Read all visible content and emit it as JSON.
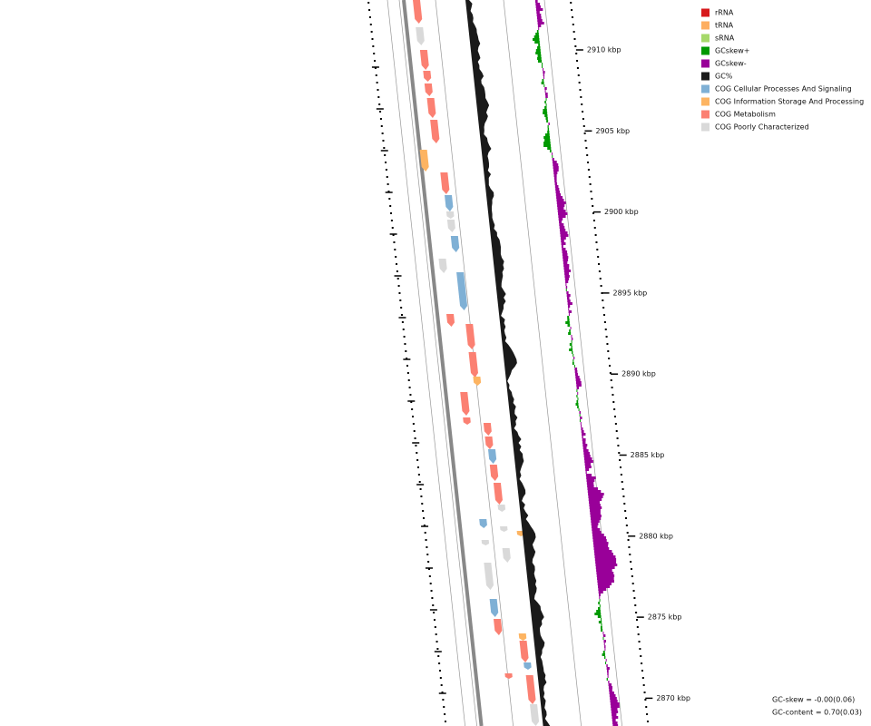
{
  "legend": [
    {
      "label": "rRNA",
      "color": "#d7191c"
    },
    {
      "label": "tRNA",
      "color": "#fdae61"
    },
    {
      "label": "sRNA",
      "color": "#a6d96a"
    },
    {
      "label": "GCskew+",
      "color": "#009900"
    },
    {
      "label": "GCskew-",
      "color": "#990099"
    },
    {
      "label": "GC%",
      "color": "#1a1a1a"
    },
    {
      "label": "COG Cellular Processes And Signaling",
      "color": "#7fb0d5"
    },
    {
      "label": "COG Information Storage And Processing",
      "color": "#fdb462"
    },
    {
      "label": "COG Metabolism",
      "color": "#fb8072"
    },
    {
      "label": "COG Poorly Characterized",
      "color": "#d9d9d9"
    }
  ],
  "scale_labels": [
    "2910 kbp",
    "2905 kbp",
    "2900 kbp",
    "2895 kbp",
    "2890 kbp",
    "2885 kbp",
    "2880 kbp",
    "2875 kbp",
    "2870 kbp"
  ],
  "footer": {
    "gc_skew": "GC-skew = -0.00(0.06)",
    "gc_content": "GC-content = 0.70(0.03)"
  }
}
